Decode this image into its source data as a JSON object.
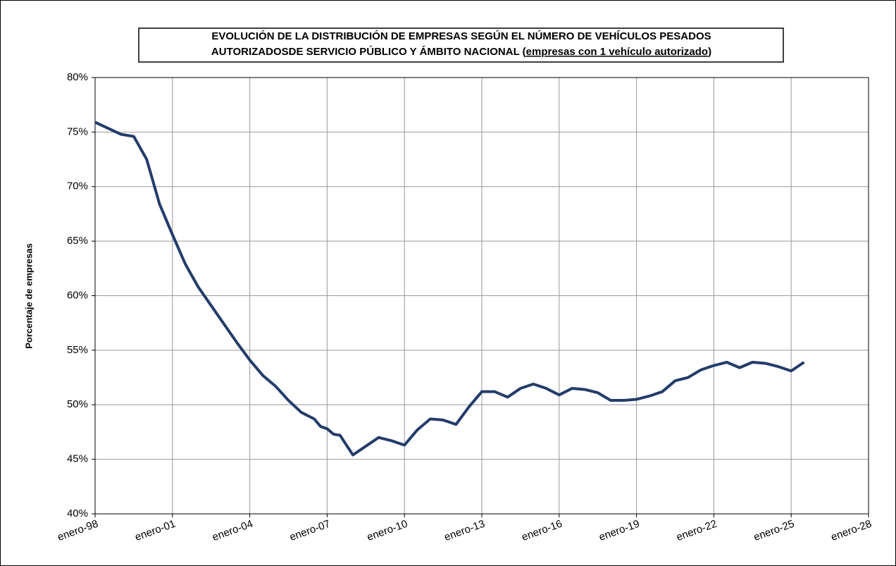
{
  "chart_data": {
    "type": "line",
    "title_parts": [
      "EVOLUCIÓN DE LA DISTRIBUCIÓN DE EMPRESAS SEGÚN EL NÚMERO DE VEHÍCULOS PESADOS",
      "AUTORIZADOSDE SERVICIO PÚBLICO Y ÁMBITO NACIONAL (",
      "empresas con 1 vehículo autorizado",
      ")"
    ],
    "y_label": "Porcentaje de empresas",
    "x": [
      "1998-01",
      "1999-01",
      "1999-07",
      "2000-01",
      "2000-07",
      "2001-01",
      "2001-07",
      "2002-01",
      "2002-07",
      "2003-01",
      "2003-07",
      "2004-01",
      "2004-07",
      "2005-01",
      "2005-07",
      "2006-01",
      "2006-07",
      "2006-10",
      "2007-01",
      "2007-04",
      "2007-07",
      "2008-01",
      "2008-07",
      "2009-01",
      "2009-07",
      "2010-01",
      "2010-07",
      "2011-01",
      "2011-07",
      "2012-01",
      "2012-07",
      "2013-01",
      "2013-07",
      "2014-01",
      "2014-07",
      "2015-01",
      "2015-07",
      "2016-01",
      "2016-07",
      "2017-01",
      "2017-07",
      "2018-01",
      "2018-07",
      "2019-01",
      "2019-07",
      "2020-01",
      "2020-07",
      "2021-01",
      "2021-07",
      "2022-01",
      "2022-07",
      "2023-01",
      "2023-07",
      "2024-01",
      "2024-07",
      "2025-01",
      "2025-07"
    ],
    "series": [
      {
        "name": "empresas con 1 vehículo autorizado",
        "color": "#233c6a",
        "values": [
          75.9,
          74.8,
          74.6,
          72.5,
          68.4,
          65.6,
          62.9,
          60.8,
          59.1,
          57.4,
          55.7,
          54.1,
          52.7,
          51.7,
          50.4,
          49.3,
          48.7,
          48.0,
          47.8,
          47.3,
          47.2,
          45.4,
          46.2,
          47.0,
          46.7,
          46.3,
          47.7,
          48.7,
          48.6,
          48.2,
          49.8,
          51.2,
          51.2,
          50.7,
          51.5,
          51.9,
          51.5,
          50.9,
          51.5,
          51.4,
          51.1,
          50.4,
          50.4,
          50.5,
          50.8,
          51.2,
          52.2,
          52.5,
          53.2,
          53.6,
          53.9,
          53.4,
          53.9,
          53.8,
          53.5,
          53.1,
          53.9
        ]
      }
    ],
    "xlim": [
      "1998-01",
      "2028-01"
    ],
    "xticks": [
      {
        "value": "1998-01",
        "label": "enero-98"
      },
      {
        "value": "2001-01",
        "label": "enero-01"
      },
      {
        "value": "2004-01",
        "label": "enero-04"
      },
      {
        "value": "2007-01",
        "label": "enero-07"
      },
      {
        "value": "2010-01",
        "label": "enero-10"
      },
      {
        "value": "2013-01",
        "label": "enero-13"
      },
      {
        "value": "2016-01",
        "label": "enero-16"
      },
      {
        "value": "2019-01",
        "label": "enero-19"
      },
      {
        "value": "2022-01",
        "label": "enero-22"
      },
      {
        "value": "2025-01",
        "label": "enero-25"
      },
      {
        "value": "2028-01",
        "label": "enero-28"
      }
    ],
    "ylim": [
      40,
      80
    ],
    "yticks": [
      {
        "value": 40,
        "label": "40%"
      },
      {
        "value": 45,
        "label": "45%"
      },
      {
        "value": 50,
        "label": "50%"
      },
      {
        "value": 55,
        "label": "55%"
      },
      {
        "value": 60,
        "label": "60%"
      },
      {
        "value": 65,
        "label": "65%"
      },
      {
        "value": 70,
        "label": "70%"
      },
      {
        "value": 75,
        "label": "75%"
      },
      {
        "value": 80,
        "label": "80%"
      }
    ],
    "grid": true
  }
}
